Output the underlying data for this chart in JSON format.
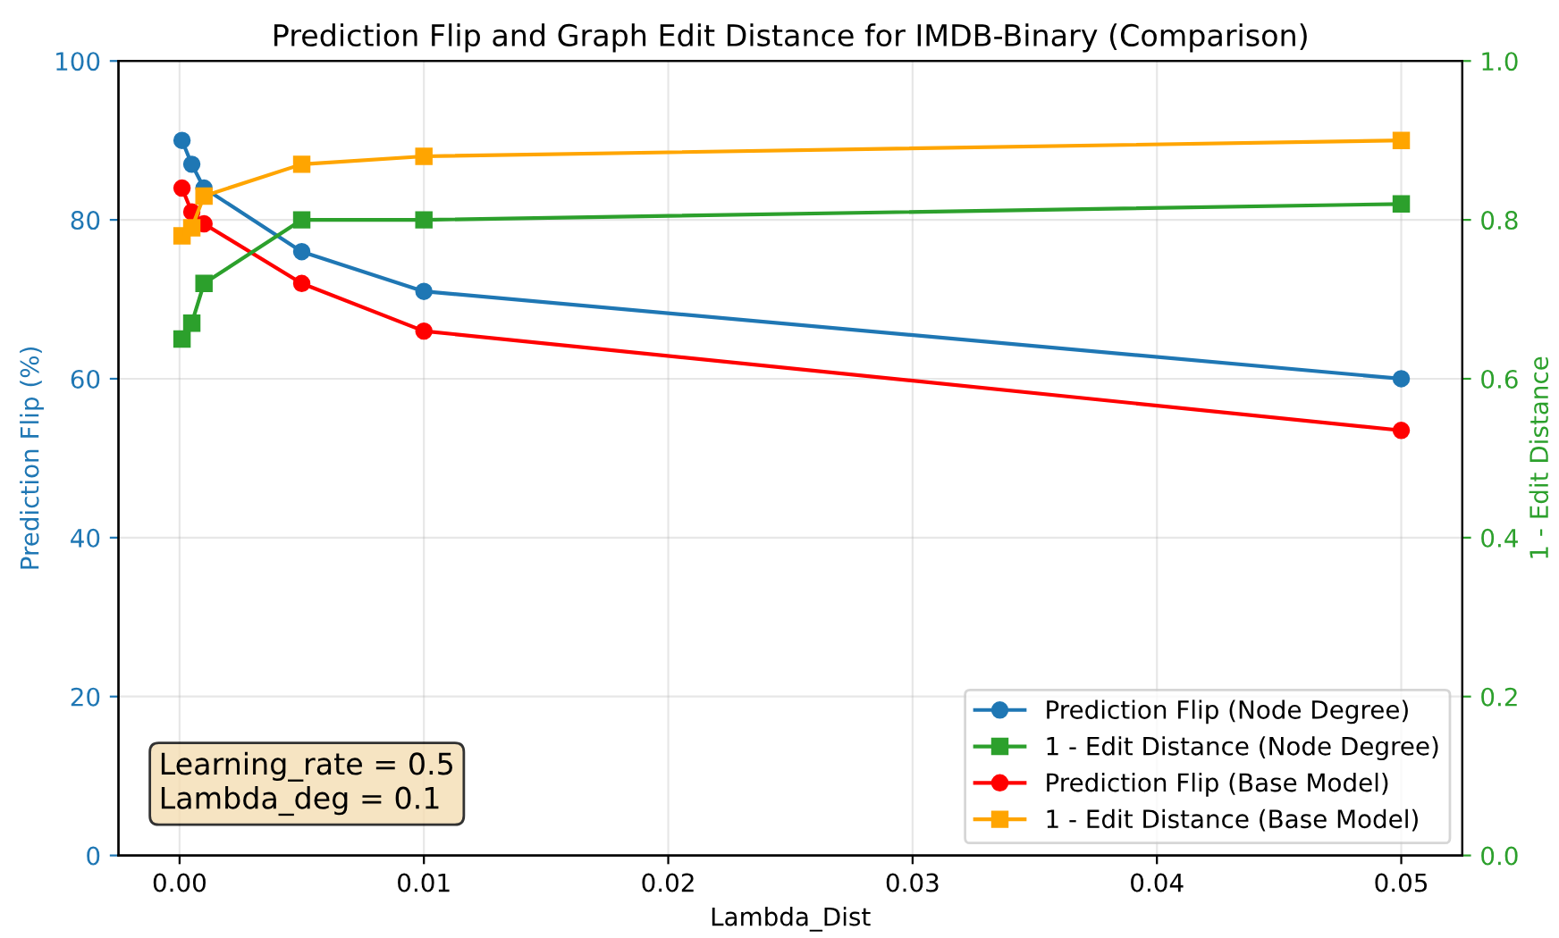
{
  "chart_data": {
    "type": "line",
    "title": "Prediction Flip and Graph Edit Distance for IMDB-Binary (Comparison)",
    "xlabel": "Lambda_Dist",
    "ylabel": "Prediction Flip (%)",
    "y2label": "1 - Edit Distance",
    "x": [
      0.0001,
      0.0005,
      0.001,
      0.005,
      0.01,
      0.05
    ],
    "series": [
      {
        "name": "Prediction Flip (Node Degree)",
        "color": "#1f77b4",
        "marker": "circle",
        "values": [
          90,
          87,
          84,
          76,
          71,
          60
        ]
      },
      {
        "name": "1 - Edit Distance (Node Degree)",
        "color": "#2ca02c",
        "marker": "square",
        "axis": "y2",
        "values": [
          0.65,
          0.67,
          0.72,
          0.8,
          0.8,
          0.82
        ]
      },
      {
        "name": "Prediction Flip (Base Model)",
        "color": "#ff0000",
        "marker": "circle",
        "values": [
          84,
          81,
          79.5,
          72,
          66,
          53.5
        ]
      },
      {
        "name": "1 - Edit Distance (Base Model)",
        "color": "#ffa500",
        "marker": "square",
        "axis": "y2",
        "values": [
          0.78,
          0.79,
          0.83,
          0.87,
          0.88,
          0.9
        ]
      }
    ],
    "xlim": [
      -0.0025,
      0.0525
    ],
    "xticks": [
      {
        "value": 0,
        "label": "0.00"
      },
      {
        "value": 0.01,
        "label": "0.01"
      },
      {
        "value": 0.02,
        "label": "0.02"
      },
      {
        "value": 0.03,
        "label": "0.03"
      },
      {
        "value": 0.04,
        "label": "0.04"
      },
      {
        "value": 0.05,
        "label": "0.05"
      }
    ],
    "ylim": [
      0,
      100
    ],
    "yticks": [
      0,
      20,
      40,
      60,
      80,
      100
    ],
    "y2lim": [
      0,
      1
    ],
    "y2ticks": [
      {
        "value": 0,
        "label": "0.0"
      },
      {
        "value": 0.2,
        "label": "0.2"
      },
      {
        "value": 0.4,
        "label": "0.4"
      },
      {
        "value": 0.6,
        "label": "0.6"
      },
      {
        "value": 0.8,
        "label": "0.8"
      },
      {
        "value": 1,
        "label": "1.0"
      }
    ],
    "annotations": [
      "Learning_rate = 0.5\nLambda_deg = 0.1"
    ],
    "grid": true,
    "legend": "lower right"
  }
}
